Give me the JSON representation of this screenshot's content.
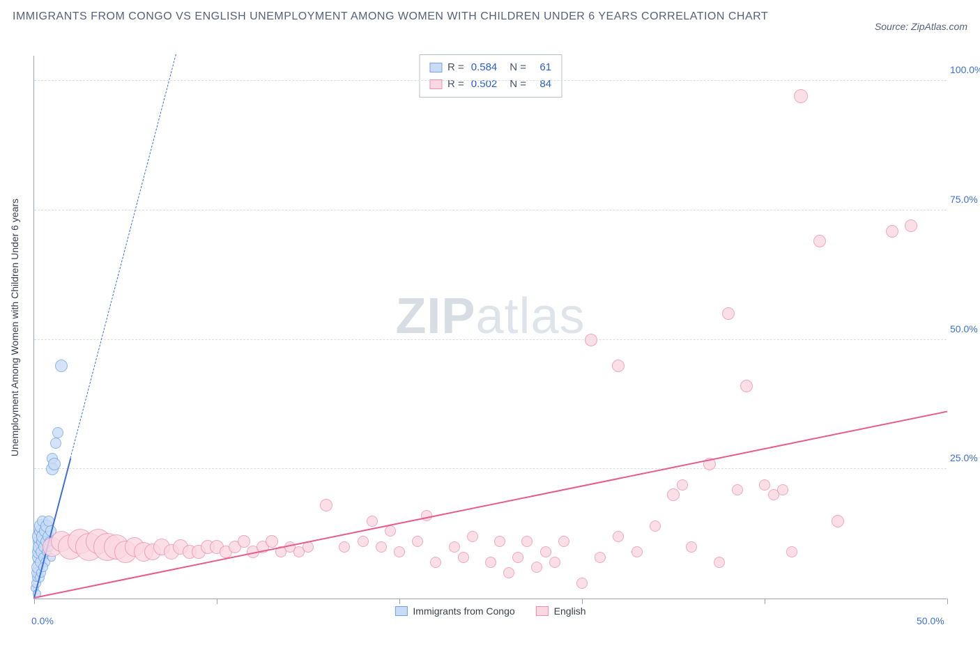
{
  "header": {
    "title": "IMMIGRANTS FROM CONGO VS ENGLISH UNEMPLOYMENT AMONG WOMEN WITH CHILDREN UNDER 6 YEARS CORRELATION CHART",
    "source": "Source: ZipAtlas.com"
  },
  "watermark": {
    "bold": "ZIP",
    "light": "atlas"
  },
  "chart": {
    "type": "scatter",
    "y_axis_label": "Unemployment Among Women with Children Under 6 years",
    "background_color": "#ffffff",
    "grid_color": "#d8dce4",
    "axis_color": "#9aa3b8",
    "label_color": "#3b6fd6",
    "xlim": [
      0,
      50
    ],
    "ylim": [
      0,
      105
    ],
    "x_ticks": [
      0,
      10,
      20,
      30,
      40,
      50
    ],
    "x_tick_labels": {
      "0": "0.0%",
      "50": "50.0%"
    },
    "y_ticks": [
      25,
      50,
      75,
      100
    ],
    "y_tick_labels": {
      "25": "25.0%",
      "50": "50.0%",
      "75": "75.0%",
      "100": "100.0%"
    },
    "series": [
      {
        "name": "Immigrants from Congo",
        "label": "Immigrants from Congo",
        "fill": "#c9dcf5",
        "stroke": "#6fa3e8",
        "r_value": "0.584",
        "n_value": "61",
        "trend": {
          "x1": 0,
          "y1": 0,
          "x2": 2.0,
          "y2": 27,
          "dashed_extend_to_x": 9.5,
          "color": "#3b6fd6",
          "width": 2
        },
        "points": [
          {
            "x": 0.05,
            "y": 2,
            "r": 6
          },
          {
            "x": 0.1,
            "y": 3,
            "r": 7
          },
          {
            "x": 0.1,
            "y": 4,
            "r": 6
          },
          {
            "x": 0.15,
            "y": 5,
            "r": 8
          },
          {
            "x": 0.15,
            "y": 1,
            "r": 6
          },
          {
            "x": 0.2,
            "y": 6,
            "r": 9
          },
          {
            "x": 0.2,
            "y": 8,
            "r": 8
          },
          {
            "x": 0.25,
            "y": 9,
            "r": 10
          },
          {
            "x": 0.25,
            "y": 11,
            "r": 9
          },
          {
            "x": 0.3,
            "y": 10,
            "r": 10
          },
          {
            "x": 0.3,
            "y": 12,
            "r": 11
          },
          {
            "x": 0.35,
            "y": 7,
            "r": 8
          },
          {
            "x": 0.35,
            "y": 13,
            "r": 9
          },
          {
            "x": 0.4,
            "y": 14,
            "r": 10
          },
          {
            "x": 0.4,
            "y": 9,
            "r": 8
          },
          {
            "x": 0.45,
            "y": 11,
            "r": 9
          },
          {
            "x": 0.45,
            "y": 15,
            "r": 8
          },
          {
            "x": 0.5,
            "y": 12,
            "r": 10
          },
          {
            "x": 0.5,
            "y": 8,
            "r": 7
          },
          {
            "x": 0.55,
            "y": 10,
            "r": 8
          },
          {
            "x": 0.6,
            "y": 13,
            "r": 9
          },
          {
            "x": 0.6,
            "y": 7,
            "r": 7
          },
          {
            "x": 0.65,
            "y": 11,
            "r": 8
          },
          {
            "x": 0.7,
            "y": 14,
            "r": 9
          },
          {
            "x": 0.7,
            "y": 9,
            "r": 7
          },
          {
            "x": 0.75,
            "y": 12,
            "r": 8
          },
          {
            "x": 0.8,
            "y": 10,
            "r": 7
          },
          {
            "x": 0.8,
            "y": 15,
            "r": 8
          },
          {
            "x": 0.85,
            "y": 11,
            "r": 7
          },
          {
            "x": 0.9,
            "y": 13,
            "r": 8
          },
          {
            "x": 0.95,
            "y": 8,
            "r": 6
          },
          {
            "x": 1.0,
            "y": 25,
            "r": 9
          },
          {
            "x": 1.0,
            "y": 27,
            "r": 8
          },
          {
            "x": 1.1,
            "y": 26,
            "r": 9
          },
          {
            "x": 1.2,
            "y": 30,
            "r": 8
          },
          {
            "x": 1.3,
            "y": 32,
            "r": 8
          },
          {
            "x": 1.5,
            "y": 45,
            "r": 9
          },
          {
            "x": 0.3,
            "y": 4,
            "r": 7
          },
          {
            "x": 0.4,
            "y": 5,
            "r": 7
          },
          {
            "x": 0.5,
            "y": 6,
            "r": 7
          }
        ]
      },
      {
        "name": "English",
        "label": "English",
        "fill": "#fbd7e1",
        "stroke": "#ec8fb0",
        "r_value": "0.502",
        "n_value": "84",
        "trend": {
          "x1": 0,
          "y1": 0,
          "x2": 50,
          "y2": 36,
          "color": "#e85a8a",
          "width": 2.5
        },
        "points": [
          {
            "x": 1,
            "y": 10,
            "r": 14
          },
          {
            "x": 1.5,
            "y": 11,
            "r": 15
          },
          {
            "x": 2,
            "y": 10,
            "r": 18
          },
          {
            "x": 2.5,
            "y": 11,
            "r": 18
          },
          {
            "x": 3,
            "y": 10,
            "r": 20
          },
          {
            "x": 3.5,
            "y": 11,
            "r": 18
          },
          {
            "x": 4,
            "y": 10,
            "r": 20
          },
          {
            "x": 4.5,
            "y": 10,
            "r": 18
          },
          {
            "x": 5,
            "y": 9,
            "r": 16
          },
          {
            "x": 5.5,
            "y": 10,
            "r": 14
          },
          {
            "x": 6,
            "y": 9,
            "r": 14
          },
          {
            "x": 6.5,
            "y": 9,
            "r": 12
          },
          {
            "x": 7,
            "y": 10,
            "r": 12
          },
          {
            "x": 7.5,
            "y": 9,
            "r": 11
          },
          {
            "x": 8,
            "y": 10,
            "r": 11
          },
          {
            "x": 8.5,
            "y": 9,
            "r": 10
          },
          {
            "x": 9,
            "y": 9,
            "r": 10
          },
          {
            "x": 9.5,
            "y": 10,
            "r": 10
          },
          {
            "x": 10,
            "y": 10,
            "r": 10
          },
          {
            "x": 10.5,
            "y": 9,
            "r": 9
          },
          {
            "x": 11,
            "y": 10,
            "r": 9
          },
          {
            "x": 11.5,
            "y": 11,
            "r": 9
          },
          {
            "x": 12,
            "y": 9,
            "r": 9
          },
          {
            "x": 12.5,
            "y": 10,
            "r": 9
          },
          {
            "x": 13,
            "y": 11,
            "r": 9
          },
          {
            "x": 13.5,
            "y": 9,
            "r": 8
          },
          {
            "x": 14,
            "y": 10,
            "r": 8
          },
          {
            "x": 14.5,
            "y": 9,
            "r": 8
          },
          {
            "x": 15,
            "y": 10,
            "r": 8
          },
          {
            "x": 16,
            "y": 18,
            "r": 9
          },
          {
            "x": 17,
            "y": 10,
            "r": 8
          },
          {
            "x": 18,
            "y": 11,
            "r": 8
          },
          {
            "x": 18.5,
            "y": 15,
            "r": 8
          },
          {
            "x": 19,
            "y": 10,
            "r": 8
          },
          {
            "x": 19.5,
            "y": 13,
            "r": 8
          },
          {
            "x": 20,
            "y": 9,
            "r": 8
          },
          {
            "x": 21,
            "y": 11,
            "r": 8
          },
          {
            "x": 21.5,
            "y": 16,
            "r": 8
          },
          {
            "x": 22,
            "y": 7,
            "r": 8
          },
          {
            "x": 23,
            "y": 10,
            "r": 8
          },
          {
            "x": 23.5,
            "y": 8,
            "r": 8
          },
          {
            "x": 24,
            "y": 12,
            "r": 8
          },
          {
            "x": 25,
            "y": 7,
            "r": 8
          },
          {
            "x": 25.5,
            "y": 11,
            "r": 8
          },
          {
            "x": 26,
            "y": 5,
            "r": 8
          },
          {
            "x": 26.5,
            "y": 8,
            "r": 8
          },
          {
            "x": 27,
            "y": 11,
            "r": 8
          },
          {
            "x": 27.5,
            "y": 6,
            "r": 8
          },
          {
            "x": 28,
            "y": 9,
            "r": 8
          },
          {
            "x": 28.5,
            "y": 7,
            "r": 8
          },
          {
            "x": 29,
            "y": 11,
            "r": 8
          },
          {
            "x": 30,
            "y": 3,
            "r": 8
          },
          {
            "x": 30.5,
            "y": 50,
            "r": 9
          },
          {
            "x": 31,
            "y": 8,
            "r": 8
          },
          {
            "x": 32,
            "y": 12,
            "r": 8
          },
          {
            "x": 32,
            "y": 45,
            "r": 9
          },
          {
            "x": 33,
            "y": 9,
            "r": 8
          },
          {
            "x": 34,
            "y": 14,
            "r": 8
          },
          {
            "x": 35,
            "y": 20,
            "r": 9
          },
          {
            "x": 35.5,
            "y": 22,
            "r": 8
          },
          {
            "x": 36,
            "y": 10,
            "r": 8
          },
          {
            "x": 37,
            "y": 26,
            "r": 9
          },
          {
            "x": 37.5,
            "y": 7,
            "r": 8
          },
          {
            "x": 38,
            "y": 55,
            "r": 9
          },
          {
            "x": 38.5,
            "y": 21,
            "r": 8
          },
          {
            "x": 39,
            "y": 41,
            "r": 9
          },
          {
            "x": 40,
            "y": 22,
            "r": 8
          },
          {
            "x": 40.5,
            "y": 20,
            "r": 8
          },
          {
            "x": 41,
            "y": 21,
            "r": 8
          },
          {
            "x": 41.5,
            "y": 9,
            "r": 8
          },
          {
            "x": 42,
            "y": 97,
            "r": 10
          },
          {
            "x": 43,
            "y": 69,
            "r": 9
          },
          {
            "x": 44,
            "y": 15,
            "r": 9
          },
          {
            "x": 47,
            "y": 71,
            "r": 9
          },
          {
            "x": 48,
            "y": 72,
            "r": 9
          }
        ]
      }
    ],
    "legend_stats_label_r": "R =",
    "legend_stats_label_n": "N ="
  }
}
